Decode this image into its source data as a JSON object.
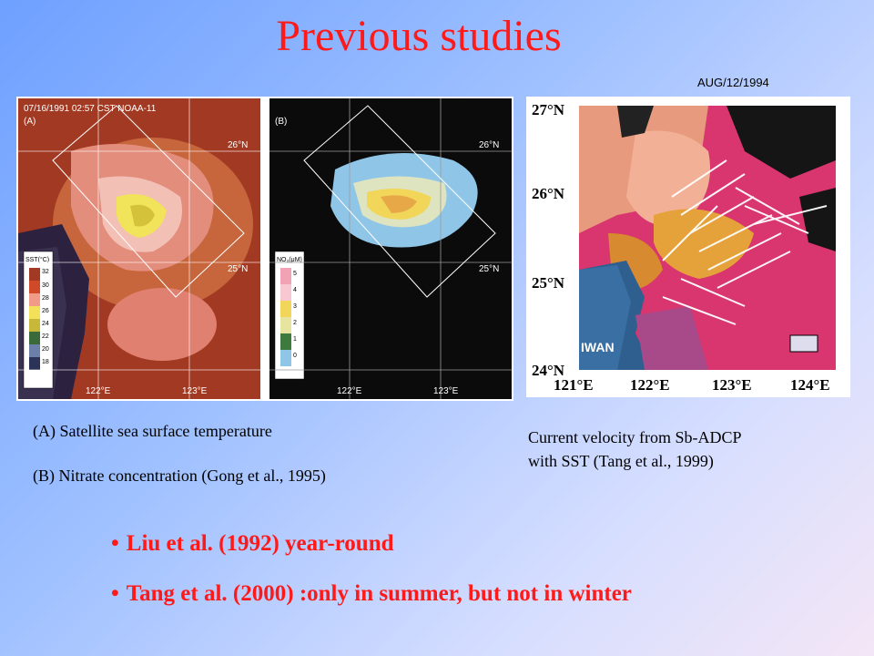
{
  "title": "Previous studies",
  "date_label": "AUG/12/1994",
  "left_figure": {
    "panel_a": {
      "label": "(A)",
      "header": "07/16/1991 02:57 CST NOAA-11",
      "lat_label_top": "26°N",
      "lat_label_mid": "25°N",
      "lon_label_1": "122°E",
      "lon_label_2": "123°E",
      "legend_title": "SST(°C)",
      "legend_values": [
        "32",
        "30",
        "28",
        "26",
        "24",
        "22",
        "20",
        "18"
      ]
    },
    "panel_b": {
      "label": "(B)",
      "lat_label_top": "26°N",
      "lat_label_mid": "25°N",
      "lon_label_1": "122°E",
      "lon_label_2": "123°E",
      "legend_title": "NO₃(μM)",
      "legend_values": [
        "5",
        "4",
        "3",
        "2",
        "1",
        "0"
      ]
    }
  },
  "right_figure": {
    "lat_labels": [
      "27°N",
      "26°N",
      "25°N",
      "24°N"
    ],
    "lon_labels": [
      "121°E",
      "122°E",
      "123°E",
      "124°E"
    ],
    "land_label": "IWAN"
  },
  "captions": {
    "left_line1": "(A) Satellite sea surface temperature",
    "left_line2": "(B) Nitrate concentration (Gong et al., 1995)",
    "right_line1": "Current velocity from Sb-ADCP",
    "right_line2": "with SST (Tang et al., 1999)"
  },
  "bullets": [
    "Liu et al. (1992) year-round",
    "Tang et al. (2000) :only in summer, but not in winter"
  ],
  "colors": {
    "title": "#ff1a1a",
    "bullet": "#ff1a1a"
  }
}
